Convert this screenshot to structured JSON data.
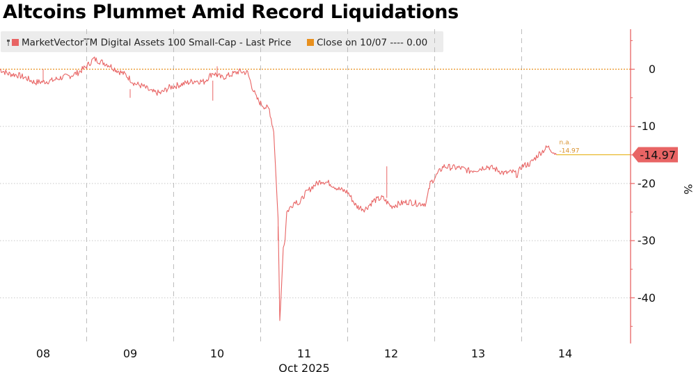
{
  "title": "Altcoins Plummet Amid Record Liquidations",
  "legend": {
    "series_label": "MarketVectorTM Digital Assets 100 Small-Cap - Last Price",
    "close_label": "Close on 10/07 ---- 0.00"
  },
  "colors": {
    "series": "#e86464",
    "close_line": "#e8901e",
    "last_tag": "#e86464",
    "axis": "#e86464"
  },
  "chart_data": {
    "type": "line",
    "xlabel_month": "Oct 2025",
    "ylabel": "%",
    "ylim": [
      -48,
      7
    ],
    "x_ticks": [
      "08",
      "09",
      "10",
      "11",
      "12",
      "13",
      "14"
    ],
    "y_ticks": [
      0,
      -10,
      -20,
      -30,
      -40
    ],
    "y_tick_labels": [
      "0",
      "-10",
      "-20",
      "-30",
      "-40"
    ],
    "series": [
      {
        "name": "MarketVectorTM Digital Assets 100 Small-Cap - Last Price",
        "x": [
          7.5,
          7.6,
          7.7,
          7.8,
          7.9,
          8.0,
          8.1,
          8.2,
          8.3,
          8.4,
          8.5,
          8.58,
          8.65,
          8.75,
          8.85,
          8.95,
          9.05,
          9.15,
          9.25,
          9.35,
          9.45,
          9.55,
          9.65,
          9.75,
          9.85,
          9.95,
          10.05,
          10.15,
          10.25,
          10.35,
          10.4,
          10.45,
          10.5,
          10.55,
          10.6,
          10.65,
          10.7,
          10.72,
          10.74,
          10.76,
          10.78,
          10.8,
          10.85,
          10.9,
          10.95,
          11.0,
          11.1,
          11.2,
          11.3,
          11.4,
          11.5,
          11.6,
          11.7,
          11.8,
          11.9,
          12.0,
          12.1,
          12.2,
          12.3,
          12.4,
          12.45,
          12.5,
          12.6,
          12.7,
          12.8,
          12.9,
          13.0,
          13.1,
          13.2,
          13.3,
          13.4,
          13.45,
          13.5,
          13.6,
          13.7,
          13.8,
          13.85,
          13.9
        ],
        "values": [
          0.0,
          -0.8,
          -1.0,
          -1.5,
          -2.3,
          -2.2,
          -2.0,
          -1.5,
          -1.2,
          -0.6,
          0.5,
          1.8,
          1.4,
          0.8,
          -0.2,
          -1.0,
          -2.5,
          -3.0,
          -4.0,
          -4.2,
          -3.2,
          -2.8,
          -2.4,
          -2.0,
          -2.2,
          -0.6,
          -1.5,
          -1.0,
          -0.4,
          -0.6,
          -3.0,
          -5.0,
          -6.0,
          -6.6,
          -7.0,
          -11.0,
          -26.0,
          -44.0,
          -38.0,
          -31.0,
          -30.0,
          -25.0,
          -24.0,
          -23.0,
          -23.5,
          -22.0,
          -20.5,
          -19.5,
          -20.0,
          -21.0,
          -21.5,
          -24.0,
          -24.5,
          -23.0,
          -22.5,
          -24.0,
          -23.5,
          -23.2,
          -23.5,
          -23.5,
          -20.0,
          -19.0,
          -17.0,
          -17.2,
          -17.3,
          -17.8,
          -17.5,
          -17.0,
          -17.5,
          -18.2,
          -18.0,
          -18.5,
          -17.0,
          -16.5,
          -14.8,
          -13.6,
          -14.2,
          -14.97
        ]
      }
    ],
    "close_value": 0.0,
    "last_value": -14.97,
    "last_value_label": "-14.97",
    "end_annotation": "n.a.",
    "end_value_label": "-14.97"
  }
}
